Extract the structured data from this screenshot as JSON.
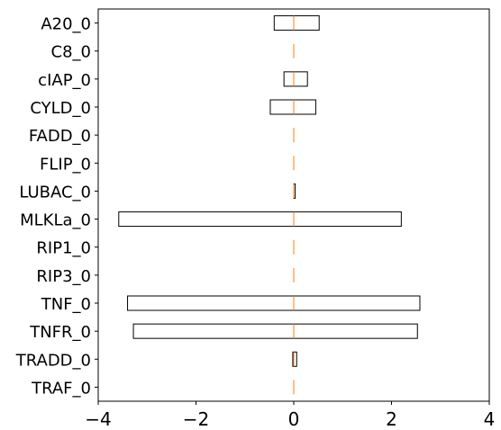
{
  "chart_data": {
    "type": "box",
    "orientation": "horizontal",
    "categories": [
      "A20_0",
      "C8_0",
      "cIAP_0",
      "CYLD_0",
      "FADD_0",
      "FLIP_0",
      "LUBAC_0",
      "MLKLa_0",
      "RIP1_0",
      "RIP3_0",
      "TNF_0",
      "TNFR_0",
      "TRADD_0",
      "TRAF_0"
    ],
    "boxes": [
      {
        "q1": -0.4,
        "median": 0.0,
        "q3": 0.52
      },
      {
        "q1": 0.0,
        "median": 0.0,
        "q3": 0.0
      },
      {
        "q1": -0.2,
        "median": 0.0,
        "q3": 0.28
      },
      {
        "q1": -0.48,
        "median": 0.0,
        "q3": 0.45
      },
      {
        "q1": 0.0,
        "median": 0.0,
        "q3": 0.0
      },
      {
        "q1": 0.0,
        "median": 0.0,
        "q3": 0.0
      },
      {
        "q1": 0.0,
        "median": 0.0,
        "q3": 0.03
      },
      {
        "q1": -3.58,
        "median": 0.0,
        "q3": 2.2
      },
      {
        "q1": 0.0,
        "median": 0.0,
        "q3": 0.0
      },
      {
        "q1": 0.0,
        "median": 0.0,
        "q3": 0.0
      },
      {
        "q1": -3.4,
        "median": 0.0,
        "q3": 2.58
      },
      {
        "q1": -3.28,
        "median": 0.0,
        "q3": 2.53
      },
      {
        "q1": -0.02,
        "median": 0.0,
        "q3": 0.06
      },
      {
        "q1": 0.0,
        "median": 0.0,
        "q3": 0.0
      }
    ],
    "xlim": [
      -4,
      4
    ],
    "xticks": [
      -4,
      -2,
      0,
      2,
      4
    ],
    "xtick_labels": [
      "−4",
      "−2",
      "0",
      "2",
      "4"
    ],
    "grid": false,
    "box_edge_color": "#000000",
    "median_color": "#ff7f0e"
  }
}
